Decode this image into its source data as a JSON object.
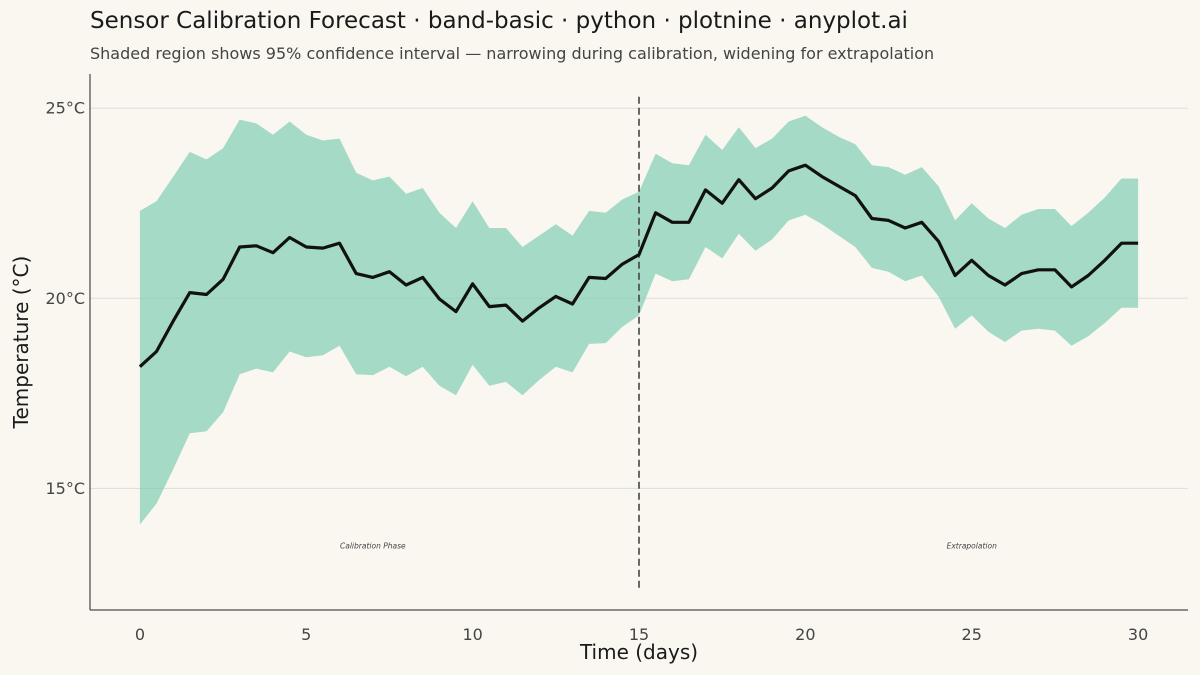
{
  "chart_data": {
    "type": "area",
    "title": "Sensor Calibration Forecast · band-basic · python · plotnine · anyplot.ai",
    "subtitle": "Shaded region shows 95% confidence interval — narrowing during calibration, widening for extrapolation",
    "xlabel": "Time (days)",
    "ylabel": "Temperature (°C)",
    "xlim": [
      -1.5,
      31.5
    ],
    "ylim": [
      11.8,
      25.9
    ],
    "xticks": [
      0,
      5,
      10,
      15,
      20,
      25,
      30
    ],
    "xtick_labels": [
      "0",
      "5",
      "10",
      "15",
      "20",
      "25",
      "30"
    ],
    "yticks": [
      15,
      20,
      25
    ],
    "ytick_labels": [
      "15°C",
      "20°C",
      "25°C"
    ],
    "grid": "horizontal",
    "colors": {
      "band": "#7FCDB4",
      "line": "#111111",
      "divider": "#444444",
      "background": "#FAF7F1"
    },
    "x": [
      0,
      0.5,
      1,
      1.5,
      2,
      2.5,
      3,
      3.5,
      4,
      4.5,
      5,
      5.5,
      6,
      6.5,
      7,
      7.5,
      8,
      8.5,
      9,
      9.5,
      10,
      10.5,
      11,
      11.5,
      12,
      12.5,
      13,
      13.5,
      14,
      14.5,
      15,
      15.5,
      16,
      16.5,
      17,
      17.5,
      18,
      18.5,
      19,
      19.5,
      20,
      20.5,
      21,
      21.5,
      22,
      22.5,
      23,
      23.5,
      24,
      24.5,
      25,
      25.5,
      26,
      26.5,
      27,
      27.5,
      28,
      28.5,
      29,
      29.5,
      30
    ],
    "series": [
      {
        "kind": "line",
        "values": [
          18.2,
          18.6,
          19.4,
          20.15,
          20.1,
          20.5,
          21.35,
          21.38,
          21.2,
          21.6,
          21.35,
          21.32,
          21.45,
          20.65,
          20.55,
          20.7,
          20.35,
          20.55,
          19.98,
          19.65,
          20.38,
          19.78,
          19.82,
          19.4,
          19.75,
          20.05,
          19.85,
          20.55,
          20.52,
          20.9,
          21.15,
          22.25,
          22.0,
          22.0,
          22.85,
          22.5,
          23.12,
          22.62,
          22.9,
          23.35,
          23.5,
          23.2,
          22.95,
          22.7,
          22.1,
          22.05,
          21.85,
          22.0,
          21.5,
          20.6,
          21.0,
          20.6,
          20.35,
          20.65,
          20.75,
          20.75,
          20.3,
          20.6,
          21.0,
          21.45,
          21.45
        ]
      },
      {
        "kind": "band",
        "lower": [
          14.05,
          14.6,
          15.5,
          16.45,
          16.5,
          17.0,
          18.0,
          18.15,
          18.05,
          18.6,
          18.45,
          18.5,
          18.75,
          18.0,
          17.98,
          18.2,
          17.95,
          18.2,
          17.7,
          17.45,
          18.25,
          17.7,
          17.8,
          17.45,
          17.85,
          18.2,
          18.05,
          18.8,
          18.82,
          19.25,
          19.55,
          20.65,
          20.45,
          20.5,
          21.35,
          21.05,
          21.7,
          21.25,
          21.55,
          22.05,
          22.2,
          21.95,
          21.65,
          21.35,
          20.8,
          20.7,
          20.45,
          20.6,
          20.05,
          19.2,
          19.55,
          19.12,
          18.85,
          19.15,
          19.2,
          19.15,
          18.75,
          19.0,
          19.35,
          19.75,
          19.75
        ],
        "upper": [
          22.3,
          22.55,
          23.2,
          23.85,
          23.65,
          23.95,
          24.7,
          24.6,
          24.3,
          24.65,
          24.3,
          24.15,
          24.2,
          23.3,
          23.1,
          23.2,
          22.75,
          22.9,
          22.25,
          21.85,
          22.55,
          21.85,
          21.85,
          21.35,
          21.65,
          21.95,
          21.65,
          22.3,
          22.25,
          22.6,
          22.8,
          23.8,
          23.55,
          23.5,
          24.3,
          23.9,
          24.5,
          23.95,
          24.2,
          24.65,
          24.8,
          24.5,
          24.25,
          24.05,
          23.5,
          23.45,
          23.25,
          23.45,
          22.95,
          22.05,
          22.5,
          22.1,
          21.85,
          22.2,
          22.35,
          22.35,
          21.9,
          22.25,
          22.65,
          23.15,
          23.15
        ]
      }
    ],
    "reference_line": {
      "x": 15,
      "style": "dashed"
    },
    "annotations": [
      {
        "text": "Calibration Phase",
        "x": 7,
        "y": 13.5
      },
      {
        "text": "Extrapolation",
        "x": 25,
        "y": 13.5
      }
    ]
  }
}
